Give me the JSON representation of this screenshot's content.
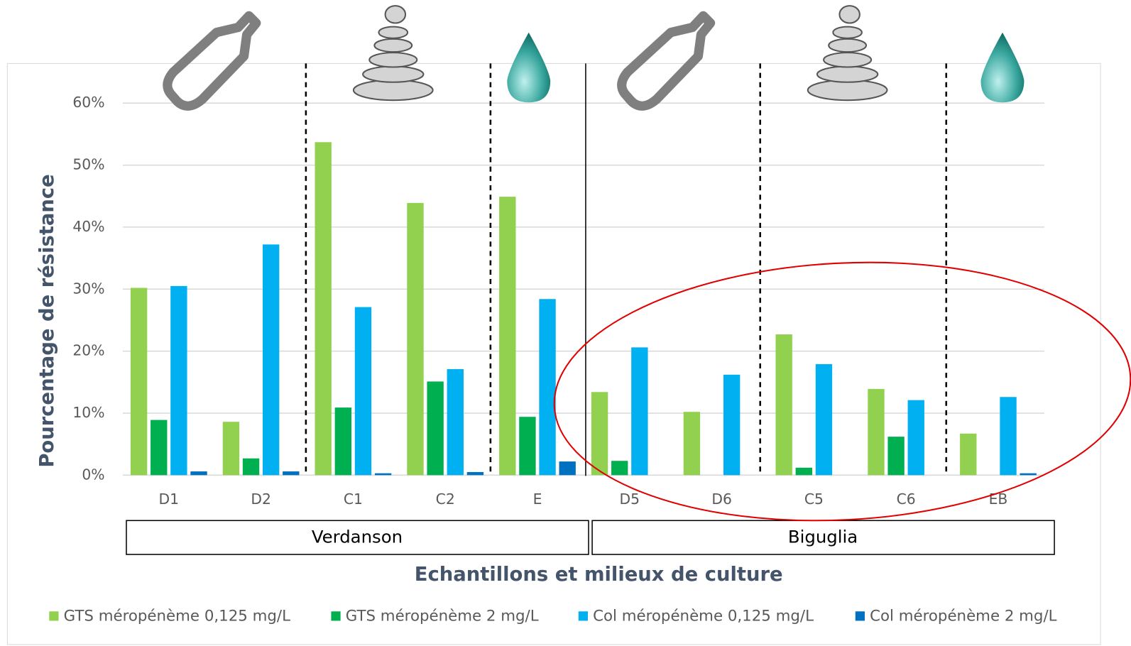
{
  "chart_data": {
    "type": "bar",
    "y_label": "Pourcentage de résistance",
    "x_label": "Echantillons et milieux de culture",
    "categories": [
      "D1",
      "D2",
      "C1",
      "C2",
      "E",
      "D5",
      "D6",
      "C5",
      "C6",
      "EB"
    ],
    "group_labels": [
      "Verdanson",
      "Biguglia"
    ],
    "series": [
      {
        "name": "GTS méropénème 0,125 mg/L",
        "color": "#92d050",
        "values": [
          30.2,
          8.6,
          53.7,
          43.9,
          44.9,
          13.4,
          10.2,
          22.7,
          13.9,
          6.7
        ]
      },
      {
        "name": "GTS méropénème 2 mg/L",
        "color": "#00b050",
        "values": [
          8.9,
          2.7,
          10.9,
          15.1,
          9.4,
          2.3,
          0,
          1.2,
          6.2,
          0
        ]
      },
      {
        "name": "Col méropénème 0,125 mg/L",
        "color": "#00b0f0",
        "values": [
          30.5,
          37.2,
          27.1,
          17.1,
          28.4,
          20.6,
          16.2,
          17.9,
          12.1,
          12.6
        ]
      },
      {
        "name": "Col méropénème 2 mg/L",
        "color": "#0070c0",
        "values": [
          0.6,
          0.6,
          0.3,
          0.5,
          2.2,
          0,
          0,
          0,
          0,
          0.3
        ]
      }
    ],
    "ylim": [
      0,
      60
    ],
    "yticks": [
      {
        "value": 0,
        "label": "0%"
      },
      {
        "value": 10,
        "label": "10%"
      },
      {
        "value": 20,
        "label": "20%"
      },
      {
        "value": 30,
        "label": "30%"
      },
      {
        "value": 40,
        "label": "40%"
      },
      {
        "value": 50,
        "label": "50%"
      },
      {
        "value": 60,
        "label": "60%"
      }
    ],
    "grid": true
  }
}
